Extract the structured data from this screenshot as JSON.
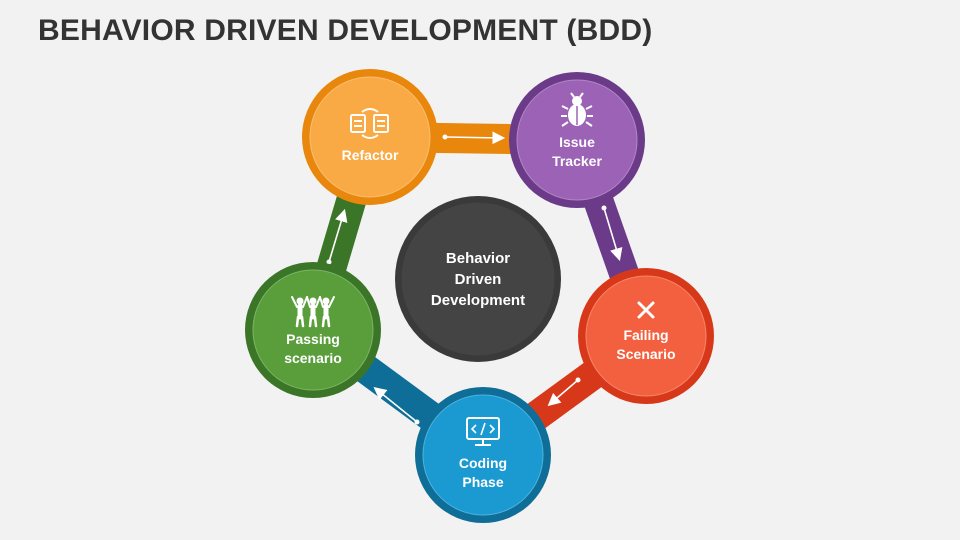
{
  "title": "BEHAVIOR DRIVEN DEVELOPMENT (BDD)",
  "center": {
    "lines": [
      "Behavior",
      "Driven",
      "Development"
    ]
  },
  "nodes": [
    {
      "id": "refactor",
      "lines": [
        "Refactor"
      ],
      "icon": "refactor-icon",
      "color": "#f29b1d",
      "fill": "#f9aa45"
    },
    {
      "id": "issue-tracker",
      "lines": [
        "Issue",
        "Tracker"
      ],
      "icon": "bug-icon",
      "color": "#6e3d8e",
      "fill": "#9b62b5"
    },
    {
      "id": "failing-scenario",
      "lines": [
        "Failing",
        "Scenario"
      ],
      "icon": "close-icon",
      "color": "#e03d1d",
      "fill": "#f2603f"
    },
    {
      "id": "coding-phase",
      "lines": [
        "Coding",
        "Phase"
      ],
      "icon": "code-monitor-icon",
      "color": "#1178a6",
      "fill": "#1a9ad1"
    },
    {
      "id": "passing-scenario",
      "lines": [
        "Passing",
        "scenario"
      ],
      "icon": "team-icon",
      "color": "#3d7a2a",
      "fill": "#5a9e3c"
    }
  ]
}
